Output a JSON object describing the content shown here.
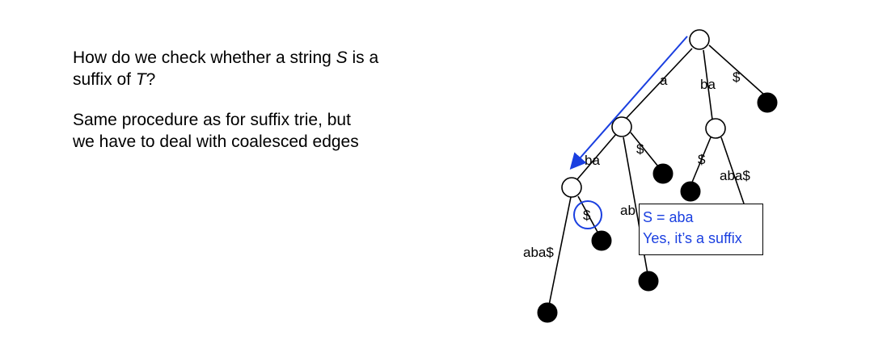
{
  "question": {
    "part1": "How do we check whether a string ",
    "var_s": "S",
    "part2": " is a",
    "part3": "suffix of ",
    "var_t": "T",
    "part4": "?"
  },
  "procedure_text_line1": "Same procedure as for suffix trie, but",
  "procedure_text_line2": "we have to deal with coalesced edges",
  "edge_labels": {
    "root_a": "a",
    "root_ba": "ba",
    "root_dollar": "$",
    "a_ba": "ba",
    "a_ab": "ab",
    "a_dollar": "$",
    "ba_dollar": "$",
    "ba_aba": "aba$",
    "aba_dollar": "$",
    "aba_aba": "aba$"
  },
  "callout": {
    "line1": "S = aba",
    "line2": "Yes, it’s a suffix"
  },
  "colors": {
    "highlight": "#1a3fe0",
    "text": "#000000"
  }
}
